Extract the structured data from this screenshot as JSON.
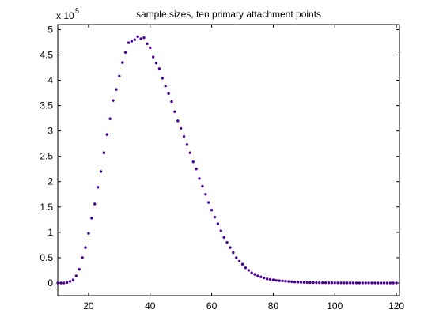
{
  "chart_data": {
    "type": "scatter",
    "title": "sample sizes, ten primary attachment points",
    "xlabel": "",
    "ylabel": "",
    "y_multiplier_label": "x 10",
    "y_multiplier_exponent": "5",
    "xlim": [
      10,
      121
    ],
    "ylim": [
      -0.25,
      5.1
    ],
    "x_ticks": [
      20,
      40,
      60,
      80,
      100,
      120
    ],
    "x_tick_labels": [
      "20",
      "40",
      "60",
      "80",
      "100",
      "120"
    ],
    "y_ticks": [
      0,
      0.5,
      1,
      1.5,
      2,
      2.5,
      3,
      3.5,
      4,
      4.5,
      5
    ],
    "y_tick_labels": [
      "0",
      "0.5",
      "1",
      "1.5",
      "2",
      "2.5",
      "3",
      "3.5",
      "4",
      "4.5",
      "5"
    ],
    "grid": false,
    "marker_color": "#4b0096",
    "series": [
      {
        "name": "",
        "x": [
          10,
          11,
          12,
          13,
          14,
          15,
          16,
          17,
          18,
          19,
          20,
          21,
          22,
          23,
          24,
          25,
          26,
          27,
          28,
          29,
          30,
          31,
          32,
          33,
          34,
          35,
          36,
          37,
          38,
          39,
          40,
          41,
          42,
          43,
          44,
          45,
          46,
          47,
          48,
          49,
          50,
          51,
          52,
          53,
          54,
          55,
          56,
          57,
          58,
          59,
          60,
          61,
          62,
          63,
          64,
          65,
          66,
          67,
          68,
          69,
          70,
          71,
          72,
          73,
          74,
          75,
          76,
          77,
          78,
          79,
          80,
          81,
          82,
          83,
          84,
          85,
          86,
          87,
          88,
          89,
          90,
          91,
          92,
          93,
          94,
          95,
          96,
          97,
          98,
          99,
          100,
          101,
          102,
          103,
          104,
          105,
          106,
          107,
          108,
          109,
          110,
          111,
          112,
          113,
          114,
          115,
          116,
          117,
          118,
          119,
          120
        ],
        "y": [
          0.0,
          0.0,
          0.0,
          0.01,
          0.03,
          0.06,
          0.14,
          0.27,
          0.5,
          0.7,
          0.98,
          1.28,
          1.56,
          1.89,
          2.2,
          2.57,
          2.93,
          3.24,
          3.6,
          3.82,
          4.08,
          4.35,
          4.55,
          4.74,
          4.77,
          4.8,
          4.86,
          4.82,
          4.84,
          4.72,
          4.64,
          4.46,
          4.34,
          4.23,
          4.04,
          3.89,
          3.74,
          3.58,
          3.38,
          3.2,
          3.05,
          2.89,
          2.73,
          2.57,
          2.39,
          2.25,
          2.06,
          1.91,
          1.75,
          1.59,
          1.44,
          1.3,
          1.17,
          1.03,
          0.9,
          0.8,
          0.7,
          0.6,
          0.5,
          0.43,
          0.37,
          0.3,
          0.25,
          0.2,
          0.17,
          0.14,
          0.12,
          0.1,
          0.08,
          0.07,
          0.06,
          0.05,
          0.045,
          0.04,
          0.035,
          0.03,
          0.025,
          0.02,
          0.018,
          0.015,
          0.012,
          0.01,
          0.01,
          0.008,
          0.007,
          0.006,
          0.005,
          0.005,
          0.004,
          0.004,
          0.003,
          0.003,
          0.003,
          0.002,
          0.002,
          0.002,
          0.002,
          0.001,
          0.001,
          0.001,
          0.001,
          0.001,
          0.001,
          0.001,
          0.0,
          0.0,
          0.0,
          0.0,
          0.0,
          0.0,
          0.0
        ]
      }
    ]
  }
}
